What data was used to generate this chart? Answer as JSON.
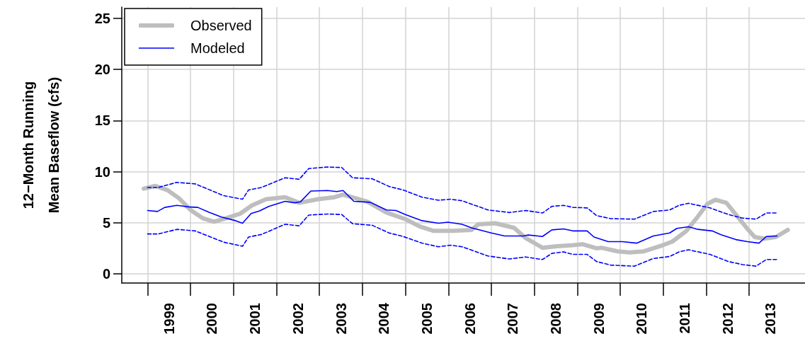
{
  "chart_data": {
    "type": "line",
    "ylabel": "12−Month Running\nMean Baseflow (cfs)",
    "xlim": [
      1998.4,
      2014.3
    ],
    "ylim": [
      -0.9,
      26.1
    ],
    "xticks": [
      {
        "value": 1999,
        "label": null
      },
      {
        "value": 1999.5,
        "label": "1999"
      },
      {
        "value": 2000,
        "label": null
      },
      {
        "value": 2000.5,
        "label": "2000"
      },
      {
        "value": 2001,
        "label": null
      },
      {
        "value": 2001.5,
        "label": "2001"
      },
      {
        "value": 2002,
        "label": null
      },
      {
        "value": 2002.5,
        "label": "2002"
      },
      {
        "value": 2003,
        "label": null
      },
      {
        "value": 2003.5,
        "label": "2003"
      },
      {
        "value": 2004,
        "label": null
      },
      {
        "value": 2004.5,
        "label": "2004"
      },
      {
        "value": 2005,
        "label": null
      },
      {
        "value": 2005.5,
        "label": "2005"
      },
      {
        "value": 2006,
        "label": null
      },
      {
        "value": 2006.5,
        "label": "2006"
      },
      {
        "value": 2007,
        "label": null
      },
      {
        "value": 2007.5,
        "label": "2007"
      },
      {
        "value": 2008,
        "label": null
      },
      {
        "value": 2008.5,
        "label": "2008"
      },
      {
        "value": 2009,
        "label": null
      },
      {
        "value": 2009.5,
        "label": "2009"
      },
      {
        "value": 2010,
        "label": null
      },
      {
        "value": 2010.5,
        "label": "2010"
      },
      {
        "value": 2011,
        "label": null
      },
      {
        "value": 2011.5,
        "label": "2011"
      },
      {
        "value": 2012,
        "label": null
      },
      {
        "value": 2012.5,
        "label": "2012"
      },
      {
        "value": 2013,
        "label": null
      },
      {
        "value": 2013.5,
        "label": "2013"
      }
    ],
    "yticks": [
      0,
      5,
      10,
      15,
      20,
      25
    ],
    "grid": true,
    "legend": "top left",
    "marker": "none",
    "series": [
      {
        "name": "Observed",
        "color": "#bebebe",
        "x": [
          1998.91,
          1999.18,
          1999.46,
          1999.73,
          2000.0,
          2000.28,
          2000.55,
          2000.83,
          2001.16,
          2001.43,
          2001.76,
          2002.2,
          2002.53,
          2002.97,
          2003.35,
          2003.55,
          2003.8,
          2004.12,
          2004.56,
          2005.0,
          2005.33,
          2005.66,
          2006.1,
          2006.54,
          2006.7,
          2007.09,
          2007.53,
          2007.8,
          2008.19,
          2008.52,
          2008.9,
          2009.12,
          2009.45,
          2009.56,
          2009.94,
          2010.22,
          2010.55,
          2010.99,
          2011.21,
          2011.54,
          2011.76,
          2012.03,
          2012.22,
          2012.47,
          2012.74,
          2012.96,
          2013.13,
          2013.35,
          2013.62,
          2013.9
        ],
        "values": [
          8.33,
          8.6,
          8.2,
          7.4,
          6.25,
          5.45,
          5.1,
          5.45,
          5.9,
          6.7,
          7.3,
          7.5,
          6.95,
          7.3,
          7.5,
          7.75,
          7.45,
          7.05,
          6.0,
          5.35,
          4.65,
          4.2,
          4.2,
          4.3,
          4.85,
          4.95,
          4.5,
          3.5,
          2.55,
          2.7,
          2.8,
          2.9,
          2.5,
          2.55,
          2.2,
          2.1,
          2.2,
          2.8,
          3.15,
          4.2,
          5.35,
          6.85,
          7.25,
          6.95,
          5.55,
          4.4,
          3.6,
          3.45,
          3.6,
          4.3
        ]
      },
      {
        "name": "Modeled",
        "color": "#0000ff",
        "x": [
          1999.0,
          1999.23,
          1999.4,
          1999.68,
          1999.95,
          2000.17,
          2000.44,
          2000.72,
          2001.05,
          2001.21,
          2001.41,
          2001.6,
          2001.82,
          2002.2,
          2002.42,
          2002.56,
          2002.8,
          2003.19,
          2003.4,
          2003.55,
          2003.8,
          2004.18,
          2004.56,
          2004.78,
          2005.0,
          2005.39,
          2005.77,
          2005.99,
          2006.32,
          2006.54,
          2007.0,
          2007.31,
          2007.75,
          2007.86,
          2008.19,
          2008.41,
          2008.68,
          2008.9,
          2009.23,
          2009.39,
          2009.72,
          2010.05,
          2010.38,
          2010.77,
          2011.15,
          2011.32,
          2011.59,
          2011.81,
          2012.14,
          2012.36,
          2012.69,
          2012.96,
          2013.23,
          2013.4,
          2013.65
        ],
        "values": [
          6.2,
          6.1,
          6.5,
          6.7,
          6.55,
          6.5,
          6.0,
          5.55,
          5.2,
          4.95,
          5.9,
          6.15,
          6.6,
          7.1,
          6.95,
          7.05,
          8.1,
          8.15,
          8.05,
          8.15,
          7.1,
          7.0,
          6.25,
          6.2,
          5.8,
          5.2,
          4.95,
          5.05,
          4.85,
          4.5,
          4.0,
          3.7,
          3.7,
          3.8,
          3.65,
          4.3,
          4.4,
          4.2,
          4.2,
          3.6,
          3.15,
          3.15,
          3.0,
          3.7,
          4.0,
          4.45,
          4.6,
          4.35,
          4.2,
          3.8,
          3.35,
          3.15,
          3.0,
          3.65,
          3.7
        ]
      },
      {
        "color": "#0000ff",
        "line_style": "dashed",
        "x": [
          1999.0,
          1999.25,
          1999.68,
          2000.11,
          2000.77,
          2001.21,
          2001.35,
          2001.65,
          2002.2,
          2002.53,
          2002.75,
          2003.19,
          2003.52,
          2003.77,
          2004.23,
          2004.62,
          2004.95,
          2005.39,
          2005.77,
          2006.05,
          2006.32,
          2006.92,
          2007.42,
          2007.8,
          2008.19,
          2008.41,
          2008.68,
          2008.9,
          2009.23,
          2009.45,
          2009.78,
          2010.33,
          2010.77,
          2011.15,
          2011.37,
          2011.59,
          2012.09,
          2012.52,
          2012.85,
          2013.16,
          2013.4,
          2013.65
        ],
        "values": [
          8.45,
          8.45,
          8.95,
          8.8,
          7.65,
          7.3,
          8.2,
          8.45,
          9.4,
          9.25,
          10.3,
          10.45,
          10.4,
          9.4,
          9.3,
          8.55,
          8.2,
          7.5,
          7.2,
          7.3,
          7.15,
          6.25,
          6.0,
          6.2,
          5.95,
          6.6,
          6.7,
          6.5,
          6.45,
          5.7,
          5.4,
          5.35,
          6.1,
          6.25,
          6.7,
          6.9,
          6.45,
          5.8,
          5.45,
          5.35,
          5.95,
          5.95
        ]
      },
      {
        "color": "#0000ff",
        "line_style": "dashed",
        "x": [
          1999.0,
          1999.25,
          1999.68,
          2000.11,
          2000.77,
          2001.21,
          2001.35,
          2001.65,
          2002.2,
          2002.53,
          2002.75,
          2003.19,
          2003.52,
          2003.77,
          2004.23,
          2004.62,
          2004.95,
          2005.39,
          2005.77,
          2006.05,
          2006.32,
          2006.92,
          2007.42,
          2007.8,
          2008.19,
          2008.41,
          2008.68,
          2008.9,
          2009.23,
          2009.45,
          2009.78,
          2010.33,
          2010.77,
          2011.15,
          2011.37,
          2011.59,
          2012.09,
          2012.52,
          2012.85,
          2013.16,
          2013.4,
          2013.65
        ],
        "values": [
          3.9,
          3.9,
          4.35,
          4.2,
          3.1,
          2.7,
          3.6,
          3.85,
          4.85,
          4.7,
          5.75,
          5.85,
          5.8,
          4.9,
          4.75,
          4.0,
          3.65,
          3.0,
          2.65,
          2.8,
          2.65,
          1.75,
          1.45,
          1.65,
          1.4,
          2.0,
          2.15,
          1.9,
          1.9,
          1.2,
          0.85,
          0.75,
          1.5,
          1.7,
          2.15,
          2.35,
          1.9,
          1.2,
          0.9,
          0.75,
          1.4,
          1.4
        ]
      }
    ]
  }
}
